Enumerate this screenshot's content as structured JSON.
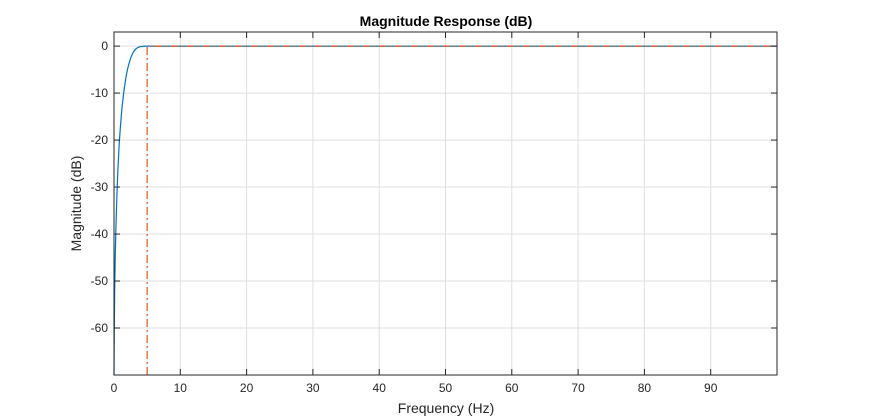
{
  "chart_data": {
    "type": "line",
    "title": "Magnitude Response (dB)",
    "xlabel": "Frequency (Hz)",
    "ylabel": "Magnitude (dB)",
    "xlim": [
      0,
      100
    ],
    "ylim": [
      -70,
      3
    ],
    "xticks": [
      0,
      10,
      20,
      30,
      40,
      50,
      60,
      70,
      80,
      90
    ],
    "yticks": [
      0,
      -10,
      -20,
      -30,
      -40,
      -50,
      -60
    ],
    "grid": true,
    "series": [
      {
        "color": "#0072BD",
        "style": "solid",
        "x": [
          0,
          0.05,
          0.1,
          0.2,
          0.3,
          0.4,
          0.5,
          0.6,
          0.8,
          1.0,
          1.2,
          1.5,
          1.8,
          2.0,
          2.2,
          2.5,
          2.8,
          3.0,
          3.3,
          3.6,
          4.0,
          4.5,
          5.0,
          6.0,
          8.0,
          10,
          20,
          30,
          40,
          50,
          60,
          70,
          80,
          90,
          100
        ],
        "y": [
          -70,
          -60,
          -52,
          -44,
          -38,
          -33.5,
          -29.5,
          -26,
          -20.5,
          -16.5,
          -13.2,
          -9.5,
          -6.7,
          -5.2,
          -4.0,
          -2.6,
          -1.6,
          -1.1,
          -0.6,
          -0.3,
          -0.1,
          -0.03,
          0,
          0,
          0,
          0,
          0,
          0,
          0,
          0,
          0,
          0,
          0,
          0,
          0
        ]
      },
      {
        "color": "#D95319",
        "style": "dashdot",
        "x": [
          5,
          5,
          100
        ],
        "y": [
          -70,
          0,
          0
        ]
      }
    ]
  }
}
